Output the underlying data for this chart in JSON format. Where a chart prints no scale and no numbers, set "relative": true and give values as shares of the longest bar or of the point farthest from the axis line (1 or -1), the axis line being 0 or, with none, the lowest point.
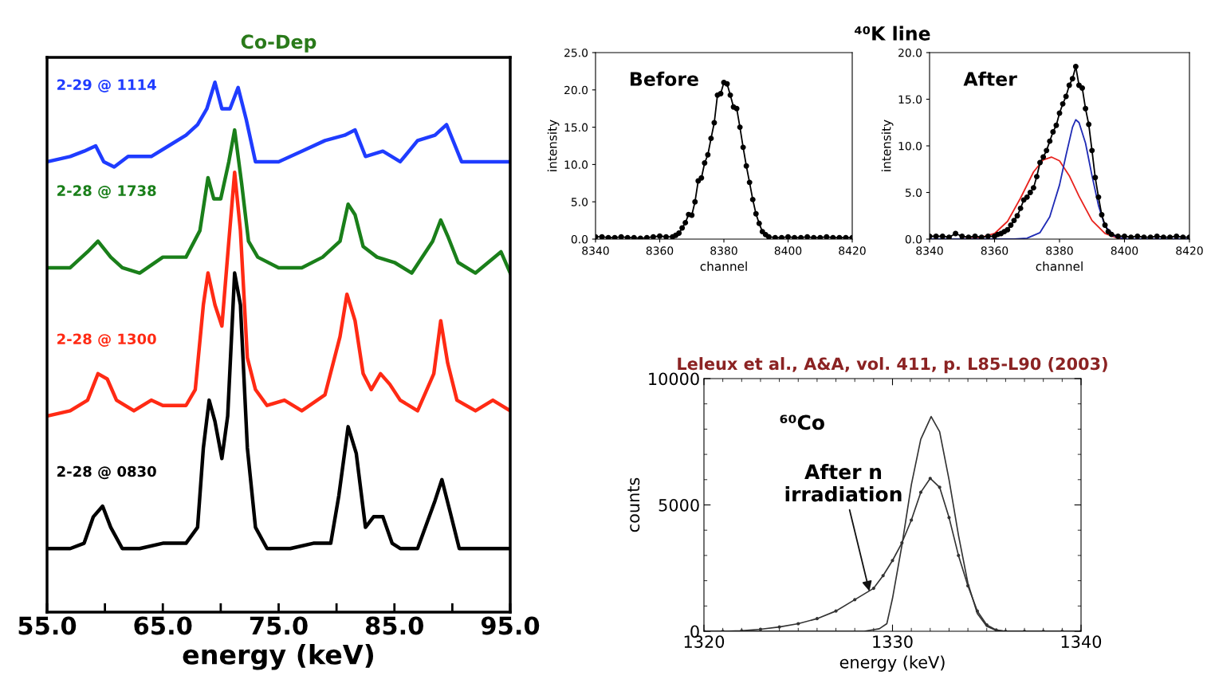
{
  "chart_data": [
    {
      "type": "line",
      "title": "Co-Dep",
      "xlabel": "energy (keV)",
      "relative": true,
      "xlim": [
        55,
        95
      ],
      "xticks": [
        {
          "value": 55,
          "label": "55.0"
        },
        {
          "value": 60,
          "label": null
        },
        {
          "value": 65,
          "label": "65.0"
        },
        {
          "value": 70,
          "label": null
        },
        {
          "value": 75,
          "label": "75.0"
        },
        {
          "value": 80,
          "label": null
        },
        {
          "value": 85,
          "label": "85.0"
        },
        {
          "value": 90,
          "label": null
        },
        {
          "value": 95,
          "label": "95.0"
        }
      ],
      "tick_labels": "x",
      "grid": false,
      "legend": false,
      "line_style": "solid",
      "series": [
        {
          "name": "2-29 @ 1114",
          "color": "#1f3cff",
          "x": [
            55,
            57,
            58.2,
            59.2,
            59.9,
            60.8,
            62,
            64,
            65.5,
            67,
            68,
            68.8,
            69.5,
            70.1,
            70.8,
            71.5,
            72.2,
            73,
            75,
            77,
            79,
            80.7,
            81.6,
            82.5,
            84,
            85.5,
            87,
            88.5,
            89.5,
            90.8,
            92.5,
            95
          ],
          "values": [
            0.85,
            0.86,
            0.87,
            0.88,
            0.85,
            0.84,
            0.86,
            0.86,
            0.88,
            0.9,
            0.92,
            0.95,
            1.0,
            0.95,
            0.95,
            0.99,
            0.93,
            0.85,
            0.85,
            0.87,
            0.89,
            0.9,
            0.91,
            0.86,
            0.87,
            0.85,
            0.89,
            0.9,
            0.92,
            0.85,
            0.85,
            0.85
          ]
        },
        {
          "name": "2-28 @ 1738",
          "color": "#1a7f1a",
          "x": [
            55,
            57,
            58.5,
            59.4,
            60.5,
            61.5,
            63,
            65,
            67,
            68.2,
            68.9,
            69.4,
            70.0,
            70.7,
            71.2,
            71.8,
            72.4,
            73.2,
            75,
            77,
            78.8,
            80.3,
            81.0,
            81.6,
            82.3,
            83.5,
            85,
            86.5,
            88.3,
            89.0,
            89.6,
            90.5,
            92,
            94.2,
            95
          ],
          "values": [
            0.65,
            0.65,
            0.68,
            0.7,
            0.67,
            0.65,
            0.64,
            0.67,
            0.67,
            0.72,
            0.82,
            0.78,
            0.78,
            0.85,
            0.91,
            0.81,
            0.7,
            0.67,
            0.65,
            0.65,
            0.67,
            0.7,
            0.77,
            0.75,
            0.69,
            0.67,
            0.66,
            0.64,
            0.7,
            0.74,
            0.71,
            0.66,
            0.64,
            0.68,
            0.64
          ]
        },
        {
          "name": "2-28 @ 1300",
          "color": "#ff2a14",
          "x": [
            55,
            57,
            58.5,
            59.4,
            60.2,
            61,
            62.5,
            64,
            65,
            67,
            67.8,
            68.5,
            68.9,
            69.5,
            70.1,
            70.7,
            71.2,
            71.7,
            72.3,
            73,
            74,
            75.5,
            77,
            79,
            80.3,
            80.9,
            81.6,
            82.3,
            83,
            83.8,
            84.6,
            85.5,
            87,
            88.4,
            89.0,
            89.6,
            90.4,
            92,
            93.5,
            95
          ],
          "values": [
            0.37,
            0.38,
            0.4,
            0.45,
            0.44,
            0.4,
            0.38,
            0.4,
            0.39,
            0.39,
            0.42,
            0.58,
            0.64,
            0.58,
            0.54,
            0.7,
            0.83,
            0.72,
            0.48,
            0.42,
            0.39,
            0.4,
            0.38,
            0.41,
            0.52,
            0.6,
            0.55,
            0.45,
            0.42,
            0.45,
            0.43,
            0.4,
            0.38,
            0.45,
            0.55,
            0.47,
            0.4,
            0.38,
            0.4,
            0.38
          ]
        },
        {
          "name": "2-28 @ 0830",
          "color": "#000000",
          "x": [
            55,
            57,
            58.2,
            59,
            59.8,
            60.5,
            61.5,
            63,
            65,
            67,
            68,
            68.5,
            69.0,
            69.5,
            70.1,
            70.6,
            71.2,
            71.7,
            72.3,
            73,
            74,
            76,
            78,
            79.5,
            80.2,
            81.0,
            81.7,
            82.5,
            83.2,
            84.0,
            84.8,
            85.5,
            87,
            88.5,
            89.1,
            89.8,
            90.6,
            92,
            95
          ],
          "values": [
            0.12,
            0.12,
            0.13,
            0.18,
            0.2,
            0.16,
            0.12,
            0.12,
            0.13,
            0.13,
            0.16,
            0.31,
            0.4,
            0.36,
            0.29,
            0.37,
            0.64,
            0.58,
            0.31,
            0.16,
            0.12,
            0.12,
            0.13,
            0.13,
            0.22,
            0.35,
            0.3,
            0.16,
            0.18,
            0.18,
            0.13,
            0.12,
            0.12,
            0.21,
            0.25,
            0.19,
            0.12,
            0.12,
            0.12
          ]
        }
      ]
    },
    {
      "type": "line",
      "title": "⁴⁰K line",
      "xlabel": "channel",
      "ylabel": "intensity",
      "annotations": [
        "Before"
      ],
      "xlim": [
        8340,
        8420
      ],
      "ylim": [
        0,
        25
      ],
      "xticks": [
        8340,
        8360,
        8380,
        8400,
        8420
      ],
      "yticks": [
        {
          "value": 0,
          "label": "0.0"
        },
        {
          "value": 5,
          "label": "5.0"
        },
        {
          "value": 10,
          "label": "10.0"
        },
        {
          "value": 15,
          "label": "15.0"
        },
        {
          "value": 20,
          "label": "20.0"
        },
        {
          "value": 25,
          "label": "25.0"
        }
      ],
      "grid": false,
      "legend": false,
      "line_style": "solid",
      "series": [
        {
          "color": "#000000",
          "marker": "circle",
          "x": [
            8340,
            8342,
            8344,
            8346,
            8348,
            8350,
            8352,
            8354,
            8356,
            8358,
            8360,
            8362,
            8364,
            8365,
            8366,
            8367,
            8368,
            8369,
            8370,
            8371,
            8372,
            8373,
            8374,
            8375,
            8376,
            8377,
            8378,
            8379,
            8380,
            8381,
            8382,
            8383,
            8384,
            8385,
            8386,
            8387,
            8388,
            8389,
            8390,
            8391,
            8392,
            8393,
            8394,
            8396,
            8398,
            8400,
            8402,
            8404,
            8406,
            8408,
            8410,
            8412,
            8414,
            8416,
            8418,
            8420
          ],
          "values": [
            0.3,
            0.3,
            0.2,
            0.2,
            0.3,
            0.2,
            0.2,
            0.1,
            0.2,
            0.3,
            0.4,
            0.3,
            0.3,
            0.5,
            0.8,
            1.5,
            2.2,
            3.3,
            3.2,
            5.0,
            7.8,
            8.2,
            10.2,
            11.3,
            13.5,
            15.6,
            19.3,
            19.5,
            21.0,
            20.8,
            19.3,
            17.7,
            17.5,
            15.0,
            12.3,
            9.8,
            7.6,
            5.3,
            3.4,
            2.1,
            1.0,
            0.6,
            0.3,
            0.2,
            0.2,
            0.3,
            0.2,
            0.2,
            0.3,
            0.2,
            0.2,
            0.3,
            0.2,
            0.2,
            0.2,
            0.2
          ]
        }
      ]
    },
    {
      "type": "line",
      "xlabel": "channel",
      "ylabel": "intensity",
      "annotations": [
        "After"
      ],
      "xlim": [
        8340,
        8420
      ],
      "ylim": [
        0,
        20
      ],
      "xticks": [
        8340,
        8360,
        8380,
        8400,
        8420
      ],
      "yticks": [
        {
          "value": 0,
          "label": "0.0"
        },
        {
          "value": 5,
          "label": "5.0"
        },
        {
          "value": 10,
          "label": "10.0"
        },
        {
          "value": 15,
          "label": "15.0"
        },
        {
          "value": 20,
          "label": "20.0"
        }
      ],
      "grid": false,
      "legend": false,
      "line_style": "solid",
      "series": [
        {
          "color": "#e8231e",
          "marker": "none",
          "x": [
            8340,
            8350,
            8355,
            8360,
            8364,
            8368,
            8372,
            8375,
            8377.5,
            8380,
            8383,
            8386,
            8390,
            8394,
            8398,
            8400,
            8420
          ],
          "values": [
            0,
            0,
            0.1,
            0.6,
            1.9,
            4.4,
            7.2,
            8.5,
            8.8,
            8.4,
            6.8,
            4.6,
            2.0,
            0.6,
            0.1,
            0,
            0
          ]
        },
        {
          "color": "#1f2bb5",
          "marker": "none",
          "x": [
            8340,
            8366,
            8370,
            8374,
            8377,
            8380,
            8382,
            8384,
            8385,
            8386,
            8388,
            8390,
            8392,
            8394,
            8397,
            8400,
            8420
          ],
          "values": [
            0,
            0,
            0.1,
            0.7,
            2.4,
            5.8,
            9.0,
            12.0,
            12.8,
            12.5,
            10.3,
            6.8,
            3.6,
            1.4,
            0.3,
            0,
            0
          ]
        },
        {
          "color": "#000000",
          "marker": "circle",
          "x": [
            8340,
            8342,
            8344,
            8346,
            8348,
            8350,
            8352,
            8354,
            8356,
            8358,
            8360,
            8361,
            8362,
            8363,
            8364,
            8365,
            8366,
            8367,
            8368,
            8369,
            8370,
            8371,
            8372,
            8373,
            8374,
            8375,
            8376,
            8377,
            8378,
            8379,
            8380,
            8381,
            8382,
            8383,
            8384,
            8385,
            8386,
            8387,
            8388,
            8389,
            8390,
            8391,
            8392,
            8393,
            8394,
            8395,
            8396,
            8398,
            8400,
            8402,
            8404,
            8406,
            8408,
            8410,
            8412,
            8414,
            8416,
            8418,
            8420
          ],
          "values": [
            0.3,
            0.3,
            0.3,
            0.2,
            0.6,
            0.3,
            0.2,
            0.3,
            0.2,
            0.3,
            0.3,
            0.5,
            0.6,
            0.8,
            1.0,
            1.5,
            2.0,
            2.5,
            3.3,
            4.2,
            4.5,
            5.0,
            5.5,
            6.7,
            8.2,
            8.8,
            9.5,
            10.5,
            11.5,
            12.2,
            13.5,
            14.5,
            15.3,
            16.5,
            17.2,
            18.5,
            16.5,
            16.2,
            14.0,
            12.3,
            9.5,
            6.6,
            4.5,
            2.6,
            1.5,
            0.8,
            0.5,
            0.3,
            0.3,
            0.2,
            0.3,
            0.2,
            0.2,
            0.3,
            0.2,
            0.2,
            0.3,
            0.2,
            0.2
          ]
        }
      ]
    },
    {
      "type": "line",
      "title": "Leleux et al., A&A, vol. 411, p. L85-L90 (2003)",
      "xlabel": "energy (keV)",
      "ylabel": "counts",
      "annotations": [
        "⁶⁰Co",
        {
          "text": "After n\nirradiation",
          "x": 1328.8,
          "y": 1500
        }
      ],
      "xlim": [
        1320,
        1340
      ],
      "ylim": [
        0,
        10000
      ],
      "xticks": [
        1320,
        {
          "value": 1321,
          "label": null
        },
        {
          "value": 1322,
          "label": null
        },
        {
          "value": 1323,
          "label": null
        },
        {
          "value": 1324,
          "label": null
        },
        {
          "value": 1325,
          "label": null
        },
        {
          "value": 1326,
          "label": null
        },
        {
          "value": 1327,
          "label": null
        },
        {
          "value": 1328,
          "label": null
        },
        {
          "value": 1329,
          "label": null
        },
        1330,
        {
          "value": 1331,
          "label": null
        },
        {
          "value": 1332,
          "label": null
        },
        {
          "value": 1333,
          "label": null
        },
        {
          "value": 1334,
          "label": null
        },
        {
          "value": 1335,
          "label": null
        },
        {
          "value": 1336,
          "label": null
        },
        {
          "value": 1337,
          "label": null
        },
        {
          "value": 1338,
          "label": null
        },
        {
          "value": 1339,
          "label": null
        },
        1340
      ],
      "yticks": [
        0,
        {
          "value": 1000,
          "label": null
        },
        {
          "value": 2000,
          "label": null
        },
        {
          "value": 3000,
          "label": null
        },
        {
          "value": 4000,
          "label": null
        },
        5000,
        {
          "value": 6000,
          "label": null
        },
        {
          "value": 7000,
          "label": null
        },
        {
          "value": 8000,
          "label": null
        },
        {
          "value": 9000,
          "label": null
        },
        10000
      ],
      "grid": false,
      "legend": false,
      "line_style": "solid",
      "series": [
        {
          "color": "#333333",
          "marker": "none",
          "x": [
            1320,
            1328.5,
            1329.3,
            1329.7,
            1330,
            1330.5,
            1331,
            1331.5,
            1332.05,
            1332.5,
            1333,
            1333.5,
            1334,
            1334.5,
            1335,
            1335.5,
            1336,
            1340
          ],
          "values": [
            0,
            0,
            100,
            300,
            1300,
            3400,
            5800,
            7600,
            8500,
            7900,
            6000,
            3800,
            1900,
            700,
            200,
            30,
            0,
            0
          ]
        },
        {
          "color": "#333333",
          "marker": "circle",
          "x": [
            1320,
            1321,
            1322,
            1323,
            1324,
            1325,
            1326,
            1327,
            1328,
            1329,
            1329.5,
            1330,
            1330.5,
            1331,
            1331.5,
            1332,
            1332.5,
            1333,
            1333.5,
            1334,
            1334.5,
            1335,
            1335.5,
            1336,
            1337,
            1338,
            1339,
            1340
          ],
          "values": [
            0,
            0,
            20,
            80,
            170,
            300,
            500,
            800,
            1250,
            1700,
            2200,
            2800,
            3500,
            4400,
            5500,
            6050,
            5700,
            4500,
            3000,
            1800,
            800,
            250,
            50,
            0,
            0,
            0,
            0,
            0
          ]
        }
      ]
    }
  ]
}
